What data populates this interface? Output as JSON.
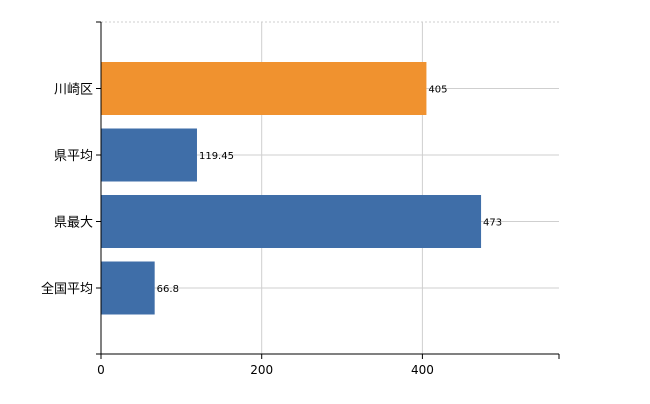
{
  "chart_data": {
    "type": "bar",
    "orientation": "horizontal",
    "categories": [
      "川崎区",
      "県平均",
      "県最大",
      "全国平均"
    ],
    "values": [
      405,
      119.45,
      473,
      66.8
    ],
    "data_labels": [
      "405",
      "119.45",
      "473",
      "66.8"
    ],
    "bar_colors": [
      "#f0922f",
      "#3f6ea8",
      "#3f6ea8",
      "#3f6ea8"
    ],
    "title": "",
    "xlabel": "",
    "ylabel": "",
    "xlim": [
      0,
      570
    ],
    "x_ticks": [
      0,
      200,
      400
    ],
    "x_tick_labels": [
      "0",
      "200",
      "400"
    ],
    "grid": true,
    "legend": "none"
  }
}
